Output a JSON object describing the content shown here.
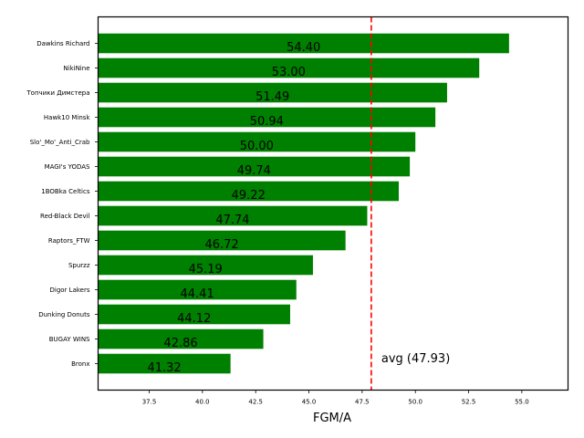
{
  "chart_data": {
    "type": "bar",
    "orientation": "horizontal",
    "title": "",
    "xlabel": "FGM/A",
    "ylabel": "",
    "xlim": [
      35.1,
      57.17
    ],
    "xticks": [
      37.5,
      40.0,
      42.5,
      45.0,
      47.5,
      50.0,
      52.5,
      55.0
    ],
    "xtick_labels": [
      "37.5",
      "40.0",
      "42.5",
      "45.0",
      "47.5",
      "50.0",
      "52.5",
      "55.0"
    ],
    "grid": false,
    "bar_color": "#008000",
    "categories": [
      "Dawkins Richard",
      "NikiNine",
      "Топчики Димстера",
      "Hawk10 Minsk",
      "Slo'_Mo'_Anti_Crab",
      "MAGI's YODAS",
      "1BOBka Celtics",
      "Red-Black Devil",
      "Raptors_FTW",
      "Spurzz",
      "Digor Lakers",
      "Dunking Donuts",
      "BUGAY WINS",
      "Bronx"
    ],
    "values": [
      54.4,
      53.0,
      51.49,
      50.94,
      50.0,
      49.74,
      49.22,
      47.74,
      46.72,
      45.19,
      44.41,
      44.12,
      42.86,
      41.32
    ],
    "value_labels": [
      "54.40",
      "53.00",
      "51.49",
      "50.94",
      "50.00",
      "49.74",
      "49.22",
      "47.74",
      "46.72",
      "45.19",
      "44.41",
      "44.12",
      "42.86",
      "41.32"
    ],
    "reference_line": {
      "value": 47.93,
      "label": "avg (47.93)",
      "color": "#ff0000",
      "style": "dashed"
    }
  }
}
